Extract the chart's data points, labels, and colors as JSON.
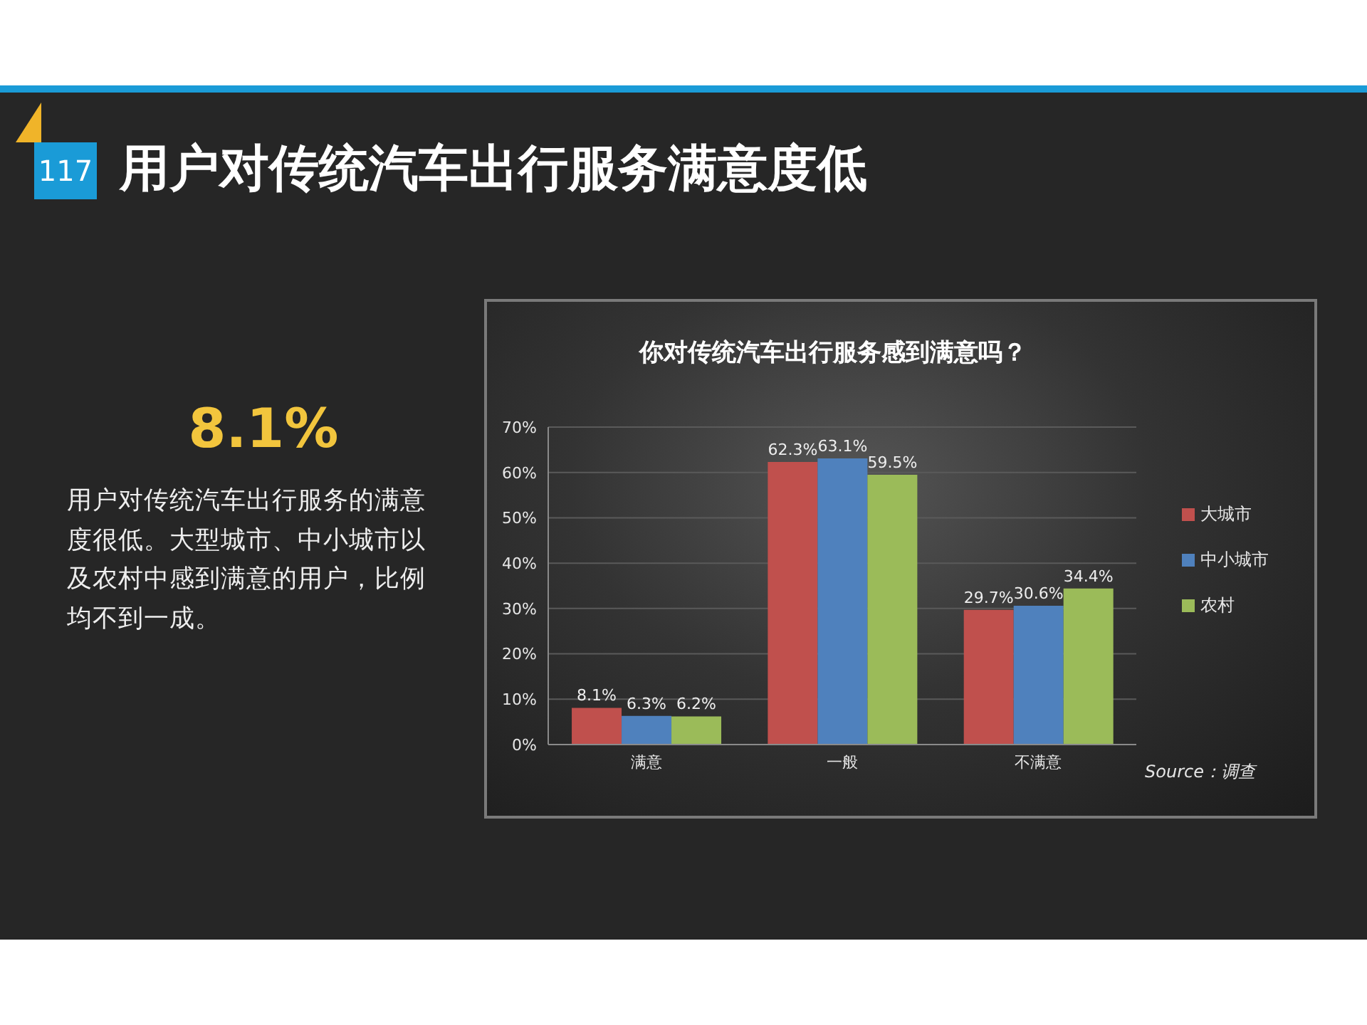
{
  "chart_data": [
    {
      "type": "other",
      "title": "用户对传统汽车出行服务满意度低",
      "annotations": [
        "117",
        "8.1%",
        "用户对传统汽车出行服务的满意度很低。大型城市、中小城市以及农村中感到满意的用户，比例均不到一成。"
      ]
    },
    {
      "type": "bar",
      "title": "你对传统汽车出行服务感到满意吗？",
      "categories": [
        "满意",
        "一般",
        "不满意"
      ],
      "series": [
        {
          "name": "大城市",
          "color": "#c0504d",
          "values": [
            8.1,
            62.3,
            29.7
          ],
          "value_labels": [
            "8.1%",
            "62.3%",
            "29.7%"
          ]
        },
        {
          "name": "中小城市",
          "color": "#4f81bd",
          "values": [
            6.3,
            63.1,
            30.6
          ],
          "value_labels": [
            "6.3%",
            "63.1%",
            "30.6%"
          ]
        },
        {
          "name": "农村",
          "color": "#9bbb59",
          "values": [
            6.2,
            59.5,
            34.4
          ],
          "value_labels": [
            "6.2%",
            "59.5%",
            "34.4%"
          ]
        }
      ],
      "ylim": [
        0,
        70
      ],
      "yticks": [
        {
          "value": 0,
          "label": "0%"
        },
        {
          "value": 10,
          "label": "10%"
        },
        {
          "value": 20,
          "label": "20%"
        },
        {
          "value": 30,
          "label": "30%"
        },
        {
          "value": 40,
          "label": "40%"
        },
        {
          "value": 50,
          "label": "50%"
        },
        {
          "value": 60,
          "label": "60%"
        },
        {
          "value": 70,
          "label": "70%"
        }
      ],
      "grid": "y",
      "legend": "right",
      "annotations": [
        "Source：调查"
      ]
    }
  ]
}
